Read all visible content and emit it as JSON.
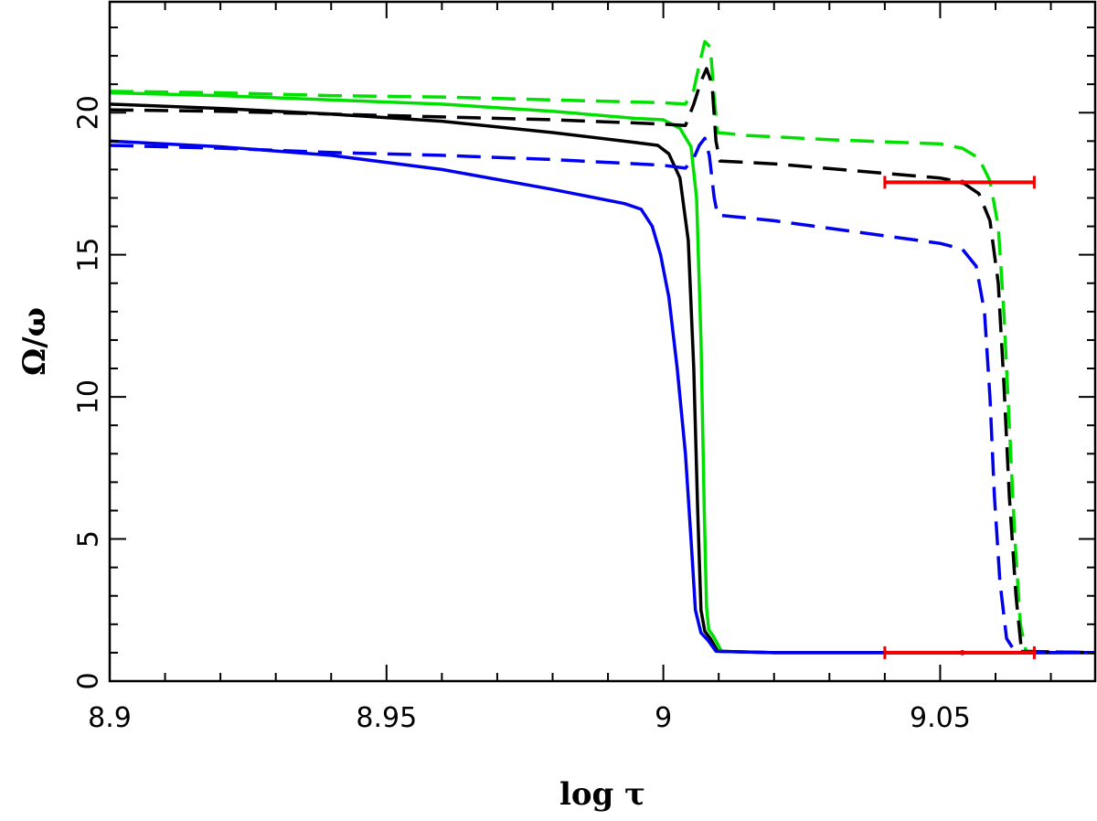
{
  "chart_data": {
    "type": "line",
    "title": "",
    "xlabel": "log τ",
    "ylabel": "Ω/ω",
    "xlim": [
      8.9,
      9.078
    ],
    "ylim": [
      0,
      23.9
    ],
    "x_major_ticks": [
      8.9,
      8.95,
      9.0,
      9.05
    ],
    "x_tick_labels": [
      "8.9",
      "8.95",
      "9",
      "9.05"
    ],
    "x_minor_step": 0.01,
    "y_major_ticks": [
      0,
      5,
      10,
      15,
      20
    ],
    "y_tick_labels": [
      "0",
      "5",
      "10",
      "15",
      "20"
    ],
    "y_minor_step": 1,
    "grid": false,
    "legend": "none",
    "series": [
      {
        "color": "#00e000",
        "style": "solid",
        "points": [
          [
            8.9,
            20.7
          ],
          [
            8.92,
            20.6
          ],
          [
            8.94,
            20.45
          ],
          [
            8.96,
            20.3
          ],
          [
            8.98,
            20.05
          ],
          [
            8.995,
            19.8
          ],
          [
            9.0,
            19.75
          ],
          [
            9.003,
            19.45
          ],
          [
            9.005,
            18.8
          ],
          [
            9.006,
            17.0
          ],
          [
            9.0068,
            12.0
          ],
          [
            9.0074,
            6.0
          ],
          [
            9.0078,
            2.6
          ],
          [
            9.0082,
            1.8
          ],
          [
            9.009,
            1.6
          ],
          [
            9.0105,
            1.05
          ],
          [
            9.02,
            1.0
          ],
          [
            9.078,
            1.0
          ]
        ]
      },
      {
        "color": "#000000",
        "style": "solid",
        "points": [
          [
            8.9,
            20.3
          ],
          [
            8.92,
            20.15
          ],
          [
            8.94,
            19.95
          ],
          [
            8.96,
            19.7
          ],
          [
            8.98,
            19.3
          ],
          [
            8.995,
            18.95
          ],
          [
            8.999,
            18.85
          ],
          [
            9.001,
            18.55
          ],
          [
            9.003,
            17.7
          ],
          [
            9.0045,
            15.5
          ],
          [
            9.0055,
            11.0
          ],
          [
            9.0062,
            6.0
          ],
          [
            9.0068,
            2.5
          ],
          [
            9.0075,
            1.75
          ],
          [
            9.0085,
            1.5
          ],
          [
            9.0098,
            1.05
          ],
          [
            9.02,
            1.0
          ],
          [
            9.078,
            1.0
          ]
        ]
      },
      {
        "color": "#0000ee",
        "style": "solid",
        "points": [
          [
            8.9,
            19.0
          ],
          [
            8.92,
            18.8
          ],
          [
            8.94,
            18.5
          ],
          [
            8.96,
            18.0
          ],
          [
            8.98,
            17.3
          ],
          [
            8.993,
            16.8
          ],
          [
            8.996,
            16.6
          ],
          [
            8.998,
            16.0
          ],
          [
            8.9995,
            15.0
          ],
          [
            9.001,
            13.5
          ],
          [
            9.0025,
            11.0
          ],
          [
            9.004,
            8.0
          ],
          [
            9.005,
            5.0
          ],
          [
            9.0058,
            2.5
          ],
          [
            9.0068,
            1.7
          ],
          [
            9.008,
            1.45
          ],
          [
            9.0095,
            1.05
          ],
          [
            9.02,
            1.0
          ],
          [
            9.078,
            1.0
          ]
        ]
      },
      {
        "color": "#00e000",
        "style": "dashed",
        "points": [
          [
            8.9,
            20.75
          ],
          [
            8.92,
            20.7
          ],
          [
            8.94,
            20.6
          ],
          [
            8.96,
            20.55
          ],
          [
            8.98,
            20.45
          ],
          [
            9.0,
            20.35
          ],
          [
            9.004,
            20.3
          ],
          [
            9.0055,
            20.8
          ],
          [
            9.0065,
            21.7
          ],
          [
            9.0075,
            22.5
          ],
          [
            9.0085,
            22.3
          ],
          [
            9.0092,
            20.5
          ],
          [
            9.0098,
            19.3
          ],
          [
            9.015,
            19.2
          ],
          [
            9.03,
            19.05
          ],
          [
            9.05,
            18.9
          ],
          [
            9.054,
            18.75
          ],
          [
            9.057,
            18.4
          ],
          [
            9.059,
            17.6
          ],
          [
            9.0605,
            16.0
          ],
          [
            9.0615,
            13.0
          ],
          [
            9.0625,
            9.0
          ],
          [
            9.0635,
            5.0
          ],
          [
            9.0645,
            2.0
          ],
          [
            9.0655,
            1.05
          ],
          [
            9.078,
            1.0
          ]
        ]
      },
      {
        "color": "#000000",
        "style": "dashed",
        "points": [
          [
            8.9,
            20.1
          ],
          [
            8.92,
            20.05
          ],
          [
            8.94,
            19.95
          ],
          [
            8.96,
            19.85
          ],
          [
            8.98,
            19.75
          ],
          [
            9.0,
            19.6
          ],
          [
            9.004,
            19.55
          ],
          [
            9.0055,
            20.3
          ],
          [
            9.0068,
            21.1
          ],
          [
            9.0078,
            21.55
          ],
          [
            9.0088,
            21.0
          ],
          [
            9.0095,
            19.0
          ],
          [
            9.0102,
            18.3
          ],
          [
            9.02,
            18.2
          ],
          [
            9.035,
            17.95
          ],
          [
            9.05,
            17.7
          ],
          [
            9.054,
            17.55
          ],
          [
            9.057,
            17.15
          ],
          [
            9.059,
            16.2
          ],
          [
            9.0605,
            14.0
          ],
          [
            9.0615,
            10.5
          ],
          [
            9.0625,
            6.5
          ],
          [
            9.0637,
            3.0
          ],
          [
            9.0647,
            1.05
          ],
          [
            9.078,
            1.0
          ]
        ]
      },
      {
        "color": "#0000ee",
        "style": "dashed",
        "points": [
          [
            8.9,
            18.85
          ],
          [
            8.92,
            18.75
          ],
          [
            8.94,
            18.6
          ],
          [
            8.96,
            18.5
          ],
          [
            8.98,
            18.35
          ],
          [
            9.0,
            18.15
          ],
          [
            9.004,
            18.05
          ],
          [
            9.0055,
            18.4
          ],
          [
            9.0065,
            18.85
          ],
          [
            9.0075,
            19.1
          ],
          [
            9.0083,
            18.5
          ],
          [
            9.0092,
            17.0
          ],
          [
            9.0098,
            16.4
          ],
          [
            9.02,
            16.2
          ],
          [
            9.035,
            15.8
          ],
          [
            9.05,
            15.4
          ],
          [
            9.054,
            15.2
          ],
          [
            9.0565,
            14.6
          ],
          [
            9.058,
            13.0
          ],
          [
            9.059,
            10.0
          ],
          [
            9.0598,
            6.5
          ],
          [
            9.0608,
            3.5
          ],
          [
            9.062,
            1.5
          ],
          [
            9.0635,
            1.05
          ],
          [
            9.078,
            1.0
          ]
        ]
      }
    ],
    "error_bars": [
      {
        "color": "#ee0000",
        "x": 9.054,
        "y": 17.55,
        "xmin": 9.04,
        "xmax": 9.067
      },
      {
        "color": "#ee0000",
        "x": 9.054,
        "y": 1.0,
        "xmin": 9.04,
        "xmax": 9.067
      }
    ]
  }
}
